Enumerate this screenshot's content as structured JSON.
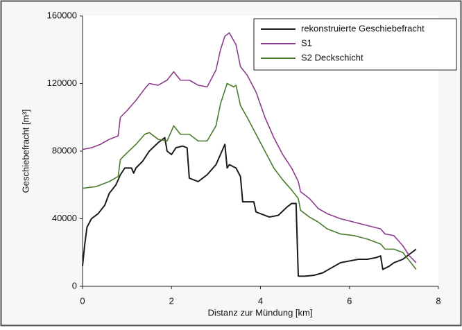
{
  "chart_data": {
    "type": "line",
    "xlabel": "Distanz zur Mündung [km]",
    "ylabel": "Geschiebefracht [m³]",
    "xlim": [
      0,
      8
    ],
    "xticks": [
      0,
      2,
      4,
      6,
      8
    ],
    "ylim": [
      0,
      160000
    ],
    "yticks": [
      0,
      40000,
      80000,
      120000,
      160000
    ],
    "grid": false,
    "legend": "upper right",
    "series": [
      {
        "name": "rekonstruierte Geschiebefracht",
        "color": "#1a1a1a",
        "x": [
          0,
          0.05,
          0.1,
          0.2,
          0.35,
          0.5,
          0.6,
          0.75,
          0.85,
          0.95,
          1.1,
          1.15,
          1.2,
          1.35,
          1.5,
          1.7,
          1.85,
          1.9,
          2.0,
          2.1,
          2.25,
          2.35,
          2.4,
          2.6,
          2.8,
          3.0,
          3.1,
          3.2,
          3.25,
          3.3,
          3.45,
          3.55,
          3.6,
          3.85,
          3.9,
          4.2,
          4.4,
          4.6,
          4.7,
          4.8,
          4.85,
          5.0,
          5.2,
          5.4,
          5.6,
          5.8,
          6.0,
          6.2,
          6.4,
          6.6,
          6.7,
          6.75,
          6.9,
          7.0,
          7.2,
          7.3,
          7.5
        ],
        "values": [
          12000,
          25000,
          35000,
          40000,
          43000,
          48000,
          55000,
          60000,
          66000,
          70000,
          70000,
          67000,
          70000,
          74000,
          80000,
          85000,
          88000,
          80000,
          78000,
          82000,
          83000,
          82000,
          64000,
          62000,
          66000,
          72000,
          78000,
          84000,
          70000,
          72000,
          70000,
          65000,
          50000,
          50000,
          44000,
          41000,
          42000,
          47000,
          49000,
          49000,
          6000,
          6000,
          6500,
          8000,
          11000,
          14000,
          15000,
          16000,
          16000,
          17000,
          18000,
          10000,
          12000,
          14000,
          16000,
          18000,
          22000
        ]
      },
      {
        "name": "S1",
        "color": "#8b3a8f",
        "x": [
          0,
          0.2,
          0.4,
          0.6,
          0.8,
          0.85,
          1.0,
          1.2,
          1.4,
          1.5,
          1.7,
          1.9,
          2.05,
          2.2,
          2.4,
          2.6,
          2.8,
          3.0,
          3.1,
          3.2,
          3.3,
          3.45,
          3.55,
          3.7,
          3.9,
          4.1,
          4.3,
          4.5,
          4.7,
          4.85,
          4.9,
          5.1,
          5.3,
          5.5,
          5.8,
          6.1,
          6.4,
          6.7,
          6.8,
          7.0,
          7.2,
          7.35,
          7.5
        ],
        "values": [
          81000,
          82000,
          84000,
          87000,
          89000,
          100000,
          104000,
          110000,
          117000,
          120000,
          119000,
          122000,
          127000,
          122000,
          122000,
          119000,
          118000,
          128000,
          140000,
          148000,
          150000,
          143000,
          130000,
          125000,
          115000,
          100000,
          88000,
          78000,
          70000,
          62000,
          56000,
          52000,
          46000,
          43000,
          40000,
          38000,
          36000,
          34000,
          31000,
          30000,
          24000,
          18000,
          14000
        ]
      },
      {
        "name": "S2 Deckschicht",
        "color": "#4a7a2c",
        "x": [
          0,
          0.3,
          0.6,
          0.8,
          0.85,
          1.0,
          1.2,
          1.4,
          1.5,
          1.7,
          1.9,
          2.05,
          2.2,
          2.4,
          2.6,
          2.8,
          3.0,
          3.1,
          3.25,
          3.4,
          3.45,
          3.55,
          3.7,
          3.9,
          4.1,
          4.3,
          4.5,
          4.7,
          4.85,
          4.9,
          5.1,
          5.3,
          5.5,
          5.8,
          6.1,
          6.4,
          6.7,
          6.8,
          7.0,
          7.2,
          7.35,
          7.5
        ],
        "values": [
          58000,
          59000,
          62000,
          65000,
          75000,
          79000,
          84000,
          90000,
          91000,
          87000,
          86000,
          95000,
          90000,
          90000,
          86000,
          86000,
          95000,
          108000,
          120000,
          118000,
          119000,
          107000,
          100000,
          90000,
          80000,
          70000,
          63000,
          57000,
          52000,
          45000,
          41000,
          38000,
          34000,
          31000,
          30000,
          28000,
          25000,
          22000,
          22000,
          20000,
          15000,
          10000
        ]
      }
    ]
  }
}
